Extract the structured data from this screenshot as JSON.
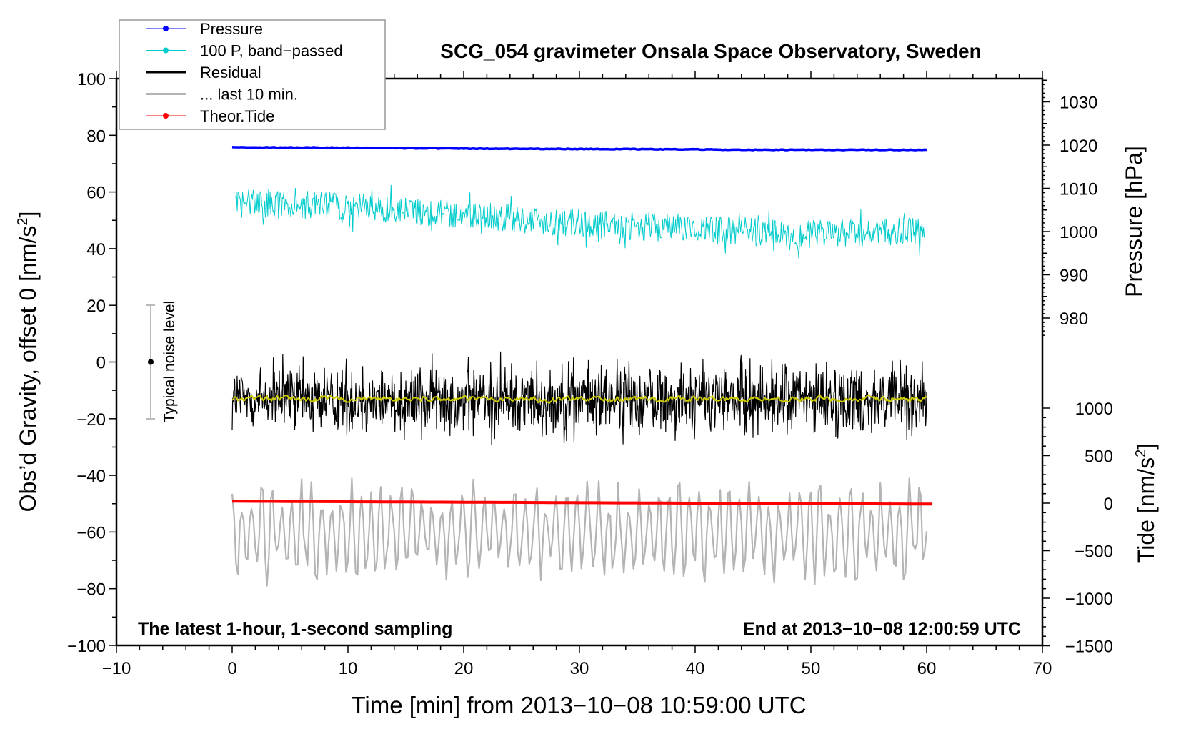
{
  "chart_data": {
    "type": "line",
    "title": "SCG_054 gravimeter Onsala Space Observatory, Sweden",
    "xlabel": "Time [min] from 2013−10−08 10:59:00 UTC",
    "ylabel": "Obs’d Gravity, offset 0 [nm/s²]",
    "ylabel_main": "Obs’d Gravity, offset 0 [nm/s",
    "ylabel_sup": "2",
    "ylabel_end": "]",
    "y2label": "Pressure [hPa]",
    "y3label_main": "Tide [nm/s",
    "y3label_sup": "2",
    "y3label_end": "]",
    "xlim": [
      -10,
      70
    ],
    "ylim": [
      -100,
      100
    ],
    "pressure_ticks": [
      "1030",
      "1020",
      "1010",
      "1000",
      "990",
      "980"
    ],
    "pressure_tick_values": [
      1030,
      1020,
      1010,
      1000,
      990,
      980
    ],
    "tide_ticks": [
      "1000",
      "500",
      "0",
      "−500",
      "−1000",
      "−1500"
    ],
    "tide_tick_values": [
      1000,
      500,
      0,
      -500,
      -1000,
      -1500
    ],
    "x_ticks": [
      "−10",
      "0",
      "10",
      "20",
      "30",
      "40",
      "50",
      "60",
      "70"
    ],
    "x_tick_values": [
      -10,
      0,
      10,
      20,
      30,
      40,
      50,
      60,
      70
    ],
    "y_ticks": [
      "100",
      "80",
      "60",
      "40",
      "20",
      "0",
      "−20",
      "−40",
      "−60",
      "−80",
      "−100"
    ],
    "y_tick_values": [
      100,
      80,
      60,
      40,
      20,
      0,
      -20,
      -40,
      -60,
      -80,
      -100
    ],
    "annotation_left": "The latest 1-hour, 1-second sampling",
    "annotation_right": "End at 2013−10−08 12:00:59 UTC",
    "noise_label": "Typical noise level",
    "noise_level": {
      "center": 0,
      "low": -20,
      "high": 20
    },
    "legend": {
      "placement": "top-left",
      "entries": [
        {
          "label": "Pressure",
          "color": "#0000ff",
          "marker": true
        },
        {
          "label": "100 P, band−passed",
          "color": "#00cccc",
          "marker": true
        },
        {
          "label": "Residual",
          "color": "#000000",
          "marker": false
        },
        {
          "label": "... last 10 min.",
          "color": "#b4b4b4",
          "marker": false
        },
        {
          "label": "Theor.Tide",
          "color": "#ff0000",
          "marker": true
        }
      ]
    },
    "series": [
      {
        "name": "Pressure",
        "axis": "pressure_hPa",
        "color": "#0000ff",
        "x": [
          0,
          10,
          20,
          30,
          40,
          45,
          50,
          60
        ],
        "values": [
          1019.5,
          1019.4,
          1019.2,
          1019.1,
          1019.0,
          1018.9,
          1018.9,
          1018.9
        ]
      },
      {
        "name": "100 P, band-passed",
        "axis": "gravity",
        "color": "#00cccc",
        "x": [
          0,
          10,
          20,
          30,
          40,
          50,
          60
        ],
        "values": [
          56,
          55,
          52,
          49,
          47,
          45,
          46
        ],
        "noise_amplitude": 5
      },
      {
        "name": "Residual",
        "axis": "gravity",
        "color": "#000000",
        "x": [
          0,
          60
        ],
        "values": [
          -13,
          -13
        ],
        "noise_amplitude": 18
      },
      {
        "name": "Residual smoothed",
        "axis": "gravity",
        "color": "#cccc00",
        "x": [
          0,
          60
        ],
        "values": [
          -13,
          -13
        ],
        "noise_amplitude": 1.5
      },
      {
        "name": "... last 10 min.",
        "axis": "gravity",
        "color": "#b4b4b4",
        "x": [
          0,
          60
        ],
        "values": [
          -60,
          -60
        ],
        "noise_amplitude": 17
      },
      {
        "name": "Theor.Tide",
        "axis": "tide_nm_s2",
        "color": "#ff0000",
        "x": [
          0,
          20,
          40,
          60.5
        ],
        "values": [
          20,
          10,
          0,
          -10
        ]
      }
    ]
  }
}
